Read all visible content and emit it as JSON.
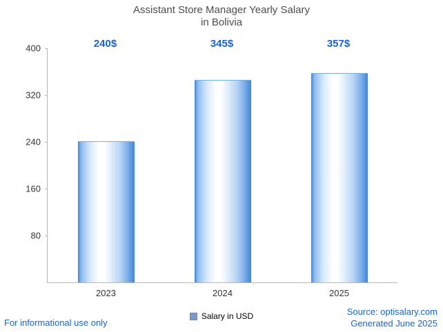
{
  "title": {
    "line1": "Assistant Store Manager Yearly Salary",
    "line2": "in Bolivia"
  },
  "chart_data": {
    "type": "bar",
    "title": "Assistant Store Manager Yearly Salary in Bolivia",
    "categories": [
      "2023",
      "2024",
      "2025"
    ],
    "values": [
      240,
      345,
      357
    ],
    "value_labels": [
      "240$",
      "345$",
      "357$"
    ],
    "xlabel": "",
    "ylabel": "",
    "ylim": [
      0,
      400
    ],
    "yticks": [
      80,
      160,
      240,
      320,
      400
    ],
    "grid": false,
    "legend": [
      "Salary in USD"
    ],
    "legend_position": "bottom-center",
    "bar_gradient": [
      "#3e86dc",
      "#ffffff",
      "#3e86dc"
    ]
  },
  "legend": {
    "label": "Salary in USD"
  },
  "footer": {
    "left": "For informational use only",
    "source": "Source: optisalary.com",
    "generated": "Generated June 2025"
  },
  "colors": {
    "accent_blue": "#1763d2",
    "title_gray": "#4d4d4d",
    "axis_gray": "#b8b8b8",
    "legend_square": "#7d97c9"
  }
}
